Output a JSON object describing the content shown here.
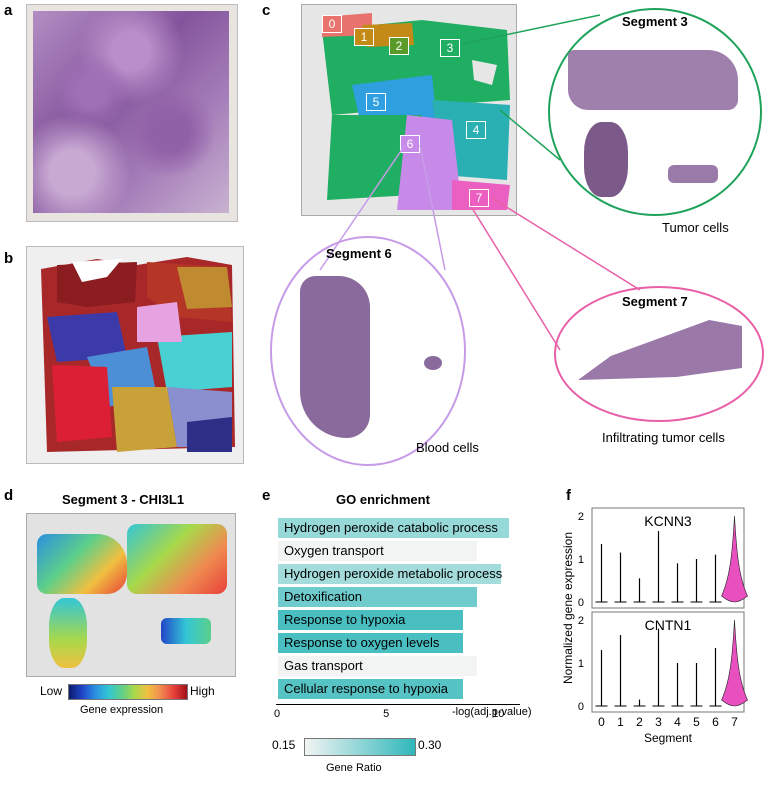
{
  "panels": {
    "a": {
      "letter": "a"
    },
    "b": {
      "letter": "b"
    },
    "c": {
      "letter": "c",
      "segments": [
        {
          "label": "0",
          "color": "#e8736c"
        },
        {
          "label": "1",
          "color": "#c48a17"
        },
        {
          "label": "2",
          "color": "#5a9a28"
        },
        {
          "label": "3",
          "color": "#1fae62"
        },
        {
          "label": "4",
          "color": "#2aafb2"
        },
        {
          "label": "5",
          "color": "#2f9fe0"
        },
        {
          "label": "6",
          "color": "#c78ae8"
        },
        {
          "label": "7",
          "color": "#ea5fbf"
        }
      ],
      "zoom_segment3": {
        "title": "Segment 3",
        "caption": "Tumor cells",
        "color": "#1fa35a"
      },
      "zoom_segment6": {
        "title": "Segment 6",
        "caption": "Blood cells",
        "color": "#c79be8"
      },
      "zoom_segment7": {
        "title": "Segment 7",
        "caption": "Infiltrating tumor cells",
        "color": "#e85fa8"
      }
    },
    "d": {
      "letter": "d",
      "title": "Segment 3 - CHI3L1",
      "legend_low": "Low",
      "legend_high": "High",
      "legend_label": "Gene expression",
      "colorscale": [
        "#0b1a6b",
        "#2145c8",
        "#2a8fe0",
        "#33c6d6",
        "#5ccf8a",
        "#a8d84a",
        "#f0c040",
        "#f08a50",
        "#e8403a",
        "#a0101a"
      ]
    },
    "e": {
      "letter": "e"
    },
    "f": {
      "letter": "f"
    }
  },
  "chart_data": [
    {
      "type": "bar",
      "title": "GO enrichment",
      "xlabel": "-log(adj.p-value)",
      "ylabel": "",
      "xlim": [
        0,
        11
      ],
      "xticks": [
        "0",
        "5",
        "10"
      ],
      "categories": [
        "Hydrogen peroxide catabolic process",
        "Oxygen transport",
        "Hydrogen peroxide metabolic process",
        "Detoxification",
        "Response to hypoxia",
        "Response to oxygen levels",
        "Gas transport",
        "Cellular response to hypoxia"
      ],
      "values": [
        10.6,
        9.1,
        10.2,
        9.1,
        8.5,
        8.5,
        9.1,
        8.5
      ],
      "gene_ratio": [
        0.22,
        0.15,
        0.21,
        0.25,
        0.28,
        0.28,
        0.15,
        0.27
      ],
      "colorbar": {
        "label": "Gene Ratio",
        "min": "0.15",
        "max": "0.30",
        "min_color": "#f2f4f3",
        "max_color": "#2fb7ba"
      }
    },
    {
      "type": "violin",
      "ylabel": "Normalized gene expression",
      "xlabel": "Segment",
      "categories": [
        "0",
        "1",
        "2",
        "3",
        "4",
        "5",
        "6",
        "7"
      ],
      "ylim": [
        0,
        2
      ],
      "yticks": [
        "0",
        "1",
        "2"
      ],
      "series": [
        {
          "name": "KCNN3",
          "max_values": [
            1.35,
            1.15,
            0.55,
            1.65,
            0.9,
            1.0,
            1.1,
            2.0
          ],
          "bulk_segment": "7"
        },
        {
          "name": "CNTN1",
          "max_values": [
            1.3,
            1.65,
            0.15,
            1.8,
            1.0,
            1.0,
            1.35,
            2.0
          ],
          "bulk_segment": "7"
        }
      ],
      "violin_color": "#e850c0"
    }
  ]
}
